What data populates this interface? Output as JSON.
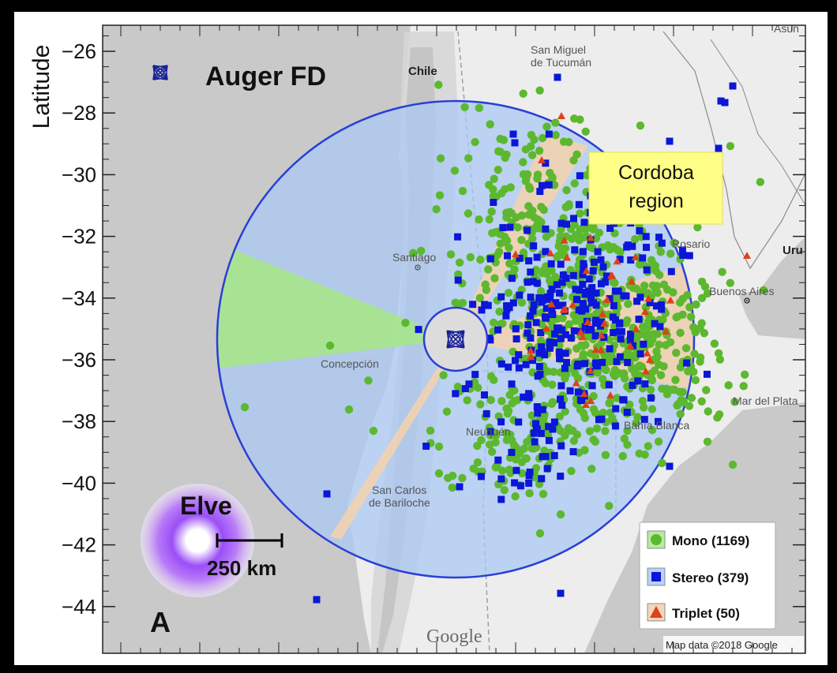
{
  "title": "Auger FD",
  "panel_letter": "A",
  "axis": {
    "ylabel": "Latitude",
    "yticks": [
      "−26",
      "−28",
      "−30",
      "−32",
      "−34",
      "−36",
      "−38",
      "−40",
      "−42",
      "−44"
    ],
    "ylim": [
      -45.2,
      -25.5
    ]
  },
  "annotation_box": {
    "line1": "Cordoba",
    "line2": "region",
    "color": "#ffff88"
  },
  "elve": {
    "label": "Elve",
    "scale_label": "250 km",
    "color": "#8a3cf5"
  },
  "places": [
    {
      "name": "San Miguel",
      "bold": false
    },
    {
      "name": "de Tucumán",
      "bold": false
    },
    {
      "name": "Chile",
      "bold": true
    },
    {
      "name": "Santiago",
      "bold": false
    },
    {
      "name": "Rosario",
      "bold": false
    },
    {
      "name": "Buenos Aires",
      "bold": false
    },
    {
      "name": "Concepción",
      "bold": false
    },
    {
      "name": "Mar del Plata",
      "bold": false
    },
    {
      "name": "Neuquén",
      "bold": false
    },
    {
      "name": "San Carlos",
      "bold": false
    },
    {
      "name": "de Bariloche",
      "bold": false
    },
    {
      "name": "Bahía Blanca",
      "bold": false
    },
    {
      "name": "Uru",
      "bold": true
    },
    {
      "name": "Asun",
      "bold": false
    }
  ],
  "legend": [
    {
      "label": "Mono (1169)",
      "marker": "circle",
      "color": "#5cb82e",
      "bg": "#b9eaa1"
    },
    {
      "label": "Stereo (379)",
      "marker": "square",
      "color": "#0b16d8",
      "bg": "#b7d3f6"
    },
    {
      "label": "Triplet (50)",
      "marker": "triangle",
      "color": "#e0401a",
      "bg": "#f2d7bb"
    }
  ],
  "map_credit": "Map data ©2018 Google",
  "google_logo": "Google",
  "colors": {
    "fov_circle": "#2a3fd6",
    "stereo_fill": "#a9c8f3",
    "mono_fill": "#a6e68b",
    "triplet_fill": "#f4d2ad",
    "ocean": "#c7c7c7",
    "land": "#ececec"
  }
}
